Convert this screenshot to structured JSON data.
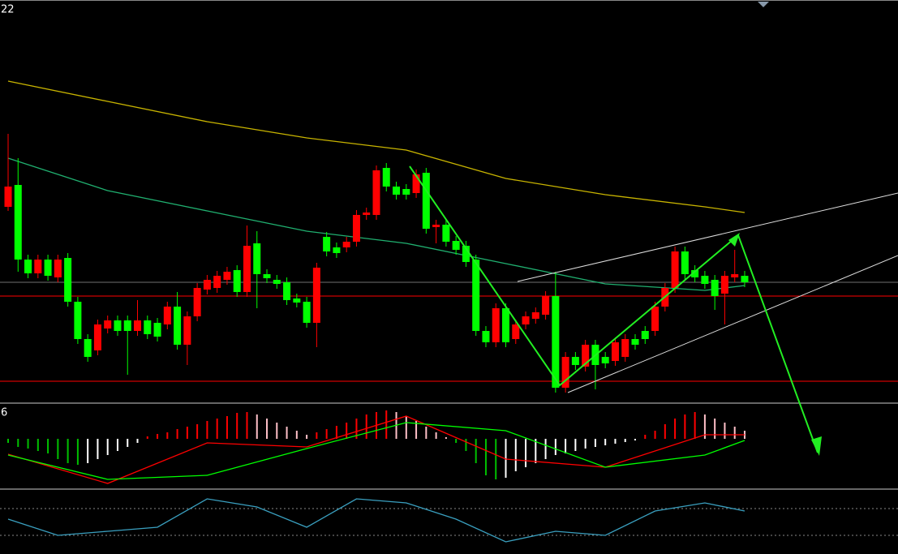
{
  "chart_data": [
    {
      "type": "candlestick",
      "title": "22",
      "ylim": [
        0,
        500
      ],
      "up_color": "#ff0000",
      "down_color": "#00ff00",
      "ohlc": [
        [
          245,
          335,
          240,
          270
        ],
        [
          272,
          305,
          165,
          180
        ],
        [
          180,
          186,
          157,
          163
        ],
        [
          163,
          186,
          157,
          180
        ],
        [
          180,
          186,
          154,
          160
        ],
        [
          158,
          186,
          152,
          180
        ],
        [
          182,
          188,
          122,
          128
        ],
        [
          128,
          134,
          76,
          82
        ],
        [
          82,
          88,
          54,
          60
        ],
        [
          68,
          106,
          62,
          100
        ],
        [
          95,
          111,
          89,
          105
        ],
        [
          105,
          111,
          86,
          92
        ],
        [
          105,
          111,
          38,
          92
        ],
        [
          92,
          130,
          86,
          105
        ],
        [
          105,
          111,
          82,
          88
        ],
        [
          102,
          108,
          79,
          85
        ],
        [
          100,
          128,
          94,
          122
        ],
        [
          122,
          140,
          69,
          75
        ],
        [
          75,
          116,
          50,
          110
        ],
        [
          110,
          151,
          104,
          145
        ],
        [
          143,
          161,
          137,
          155
        ],
        [
          145,
          166,
          139,
          160
        ],
        [
          155,
          171,
          149,
          165
        ],
        [
          167,
          173,
          134,
          140
        ],
        [
          140,
          222,
          134,
          197
        ],
        [
          200,
          215,
          120,
          162
        ],
        [
          162,
          168,
          151,
          157
        ],
        [
          155,
          161,
          144,
          150
        ],
        [
          152,
          158,
          124,
          130
        ],
        [
          132,
          138,
          121,
          127
        ],
        [
          128,
          134,
          96,
          102
        ],
        [
          102,
          176,
          72,
          170
        ],
        [
          208,
          214,
          184,
          190
        ],
        [
          195,
          201,
          182,
          188
        ],
        [
          195,
          208,
          189,
          202
        ],
        [
          202,
          241,
          196,
          235
        ],
        [
          235,
          244,
          229,
          238
        ],
        [
          235,
          296,
          229,
          290
        ],
        [
          293,
          299,
          264,
          270
        ],
        [
          270,
          276,
          254,
          260
        ],
        [
          267,
          273,
          254,
          260
        ],
        [
          262,
          291,
          256,
          285
        ],
        [
          287,
          293,
          212,
          218
        ],
        [
          220,
          229,
          200,
          223
        ],
        [
          223,
          229,
          196,
          202
        ],
        [
          203,
          209,
          186,
          192
        ],
        [
          197,
          203,
          171,
          177
        ],
        [
          180,
          186,
          86,
          92
        ],
        [
          92,
          98,
          72,
          78
        ],
        [
          78,
          126,
          72,
          120
        ],
        [
          120,
          126,
          72,
          78
        ],
        [
          82,
          106,
          76,
          100
        ],
        [
          100,
          116,
          94,
          110
        ],
        [
          107,
          121,
          101,
          115
        ],
        [
          112,
          141,
          106,
          135
        ],
        [
          135,
          165,
          16,
          22
        ],
        [
          22,
          66,
          16,
          60
        ],
        [
          60,
          66,
          44,
          50
        ],
        [
          48,
          81,
          42,
          75
        ],
        [
          75,
          81,
          20,
          50
        ],
        [
          60,
          66,
          46,
          52
        ],
        [
          55,
          84,
          49,
          78
        ],
        [
          60,
          88,
          54,
          82
        ],
        [
          82,
          88,
          69,
          75
        ],
        [
          92,
          98,
          76,
          82
        ],
        [
          92,
          128,
          86,
          122
        ],
        [
          122,
          151,
          116,
          145
        ],
        [
          145,
          196,
          139,
          190
        ],
        [
          190,
          196,
          156,
          162
        ],
        [
          167,
          173,
          152,
          158
        ],
        [
          160,
          166,
          144,
          150
        ],
        [
          155,
          161,
          118,
          135
        ],
        [
          138,
          166,
          100,
          160
        ],
        [
          158,
          192,
          152,
          162
        ],
        [
          160,
          166,
          146,
          152
        ]
      ],
      "lines": [
        {
          "color": "#c8b400",
          "x": [
            0,
            10,
            20,
            30,
            40,
            50,
            60,
            70,
            74
          ],
          "values": [
            400,
            375,
            350,
            330,
            315,
            280,
            260,
            245,
            238
          ]
        },
        {
          "color": "#20b070",
          "x": [
            0,
            10,
            20,
            30,
            40,
            50,
            60,
            70,
            74
          ],
          "values": [
            305,
            265,
            240,
            215,
            200,
            175,
            150,
            142,
            148
          ]
        }
      ],
      "hlines": [
        {
          "value": 135,
          "color": "#ff0000"
        },
        {
          "value": 30,
          "color": "#ff0000"
        },
        {
          "value": 152,
          "color": "#707070"
        }
      ]
    },
    {
      "type": "macd",
      "title": "6",
      "ylim": [
        -62,
        43
      ],
      "histogram": [
        -5,
        -10,
        -12,
        -15,
        -18,
        -25,
        -30,
        -32,
        -30,
        -25,
        -20,
        -15,
        -10,
        -5,
        3,
        6,
        8,
        12,
        15,
        18,
        22,
        25,
        28,
        32,
        33,
        30,
        25,
        20,
        15,
        10,
        5,
        8,
        12,
        16,
        20,
        25,
        30,
        33,
        35,
        33,
        28,
        22,
        15,
        8,
        2,
        -5,
        -15,
        -30,
        -45,
        -50,
        -48,
        -40,
        -35,
        -30,
        -25,
        -20,
        -18,
        -15,
        -12,
        -10,
        -8,
        -6,
        -4,
        -2,
        5,
        10,
        18,
        25,
        30,
        33,
        30,
        25,
        20,
        15,
        10
      ],
      "palette": {
        "up_rising": "#ff0000",
        "up_falling": "#ffc0c8",
        "down_falling": "#00c000",
        "down_rising": "#ffffff"
      },
      "lines": [
        {
          "color": "#ff0000",
          "x": [
            0,
            10,
            20,
            30,
            40,
            50,
            60,
            70,
            74
          ],
          "values": [
            -19,
            -55,
            -5,
            -10,
            28,
            -25,
            -35,
            5,
            5
          ]
        },
        {
          "color": "#00ff00",
          "x": [
            0,
            10,
            20,
            30,
            40,
            50,
            60,
            70,
            74
          ],
          "values": [
            -20,
            -50,
            -45,
            -12,
            20,
            10,
            -35,
            -20,
            -2
          ]
        }
      ]
    },
    {
      "type": "oscillator",
      "ylim": [
        0,
        78
      ],
      "lines": [
        {
          "color": "#3aa0c0",
          "x": [
            0,
            5,
            10,
            15,
            20,
            25,
            30,
            35,
            40,
            45,
            50,
            55,
            60,
            65,
            70,
            74
          ],
          "values": [
            43,
            23,
            28,
            33,
            68,
            58,
            33,
            68,
            63,
            43,
            15,
            28,
            23,
            53,
            63,
            53
          ]
        }
      ],
      "levels": [
        56,
        23
      ]
    }
  ]
}
